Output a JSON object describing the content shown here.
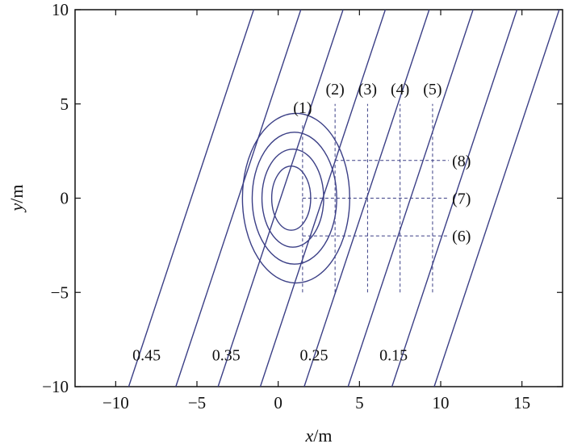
{
  "chart_data": {
    "type": "contour",
    "xlabel_var": "x",
    "xlabel_unit": "/m",
    "ylabel_var": "y",
    "ylabel_unit": "/m",
    "xlim": [
      -12.5,
      17.5
    ],
    "ylim": [
      -10,
      10
    ],
    "xticks": [
      -10,
      -5,
      0,
      5,
      10,
      15
    ],
    "yticks": [
      -10,
      -5,
      0,
      5,
      10
    ],
    "xtick_labels": [
      "−10",
      "−5",
      "0",
      "5",
      "10",
      "15"
    ],
    "ytick_labels": [
      "−10",
      "−5",
      "0",
      "5",
      "10"
    ],
    "line_color": "#3b3f86",
    "parallel_contours": {
      "slope": 2.6,
      "x_at_bottom": [
        -9.2,
        -6.3,
        -3.7,
        -1.1,
        1.6,
        4.3,
        7.0,
        9.6
      ],
      "labels": [
        {
          "text": "0.45",
          "x": -8.1,
          "y": -8.3
        },
        {
          "text": "0.35",
          "x": -3.2,
          "y": -8.3
        },
        {
          "text": "0.25",
          "x": 2.2,
          "y": -8.3
        },
        {
          "text": "0.15",
          "x": 7.1,
          "y": -8.3
        }
      ]
    },
    "closed_contours": [
      {
        "cx": 0.8,
        "cy": 0.0,
        "rx": 1.2,
        "ry": 1.7
      },
      {
        "cx": 0.9,
        "cy": 0.0,
        "rx": 1.9,
        "ry": 2.6
      },
      {
        "cx": 1.0,
        "cy": 0.0,
        "rx": 2.6,
        "ry": 3.5
      },
      {
        "cx": 1.1,
        "cy": 0.0,
        "rx": 3.3,
        "ry": 4.5
      }
    ],
    "vertical_guides": [
      {
        "label": "(1)",
        "x": 1.5,
        "y_from": -5,
        "y_to": 4
      },
      {
        "label": "(2)",
        "x": 3.5,
        "y_from": -5,
        "y_to": 5
      },
      {
        "label": "(3)",
        "x": 5.5,
        "y_from": -5,
        "y_to": 5
      },
      {
        "label": "(4)",
        "x": 7.5,
        "y_from": -5,
        "y_to": 5
      },
      {
        "label": "(5)",
        "x": 9.5,
        "y_from": -5,
        "y_to": 5
      }
    ],
    "horizontal_guides": [
      {
        "label": "(8)",
        "y": 2,
        "x_from": 3.5,
        "x_to": 10.5
      },
      {
        "label": "(7)",
        "y": 0,
        "x_from": 1.5,
        "x_to": 10.5
      },
      {
        "label": "(6)",
        "y": -2,
        "x_from": 1.5,
        "x_to": 10.5
      }
    ]
  }
}
